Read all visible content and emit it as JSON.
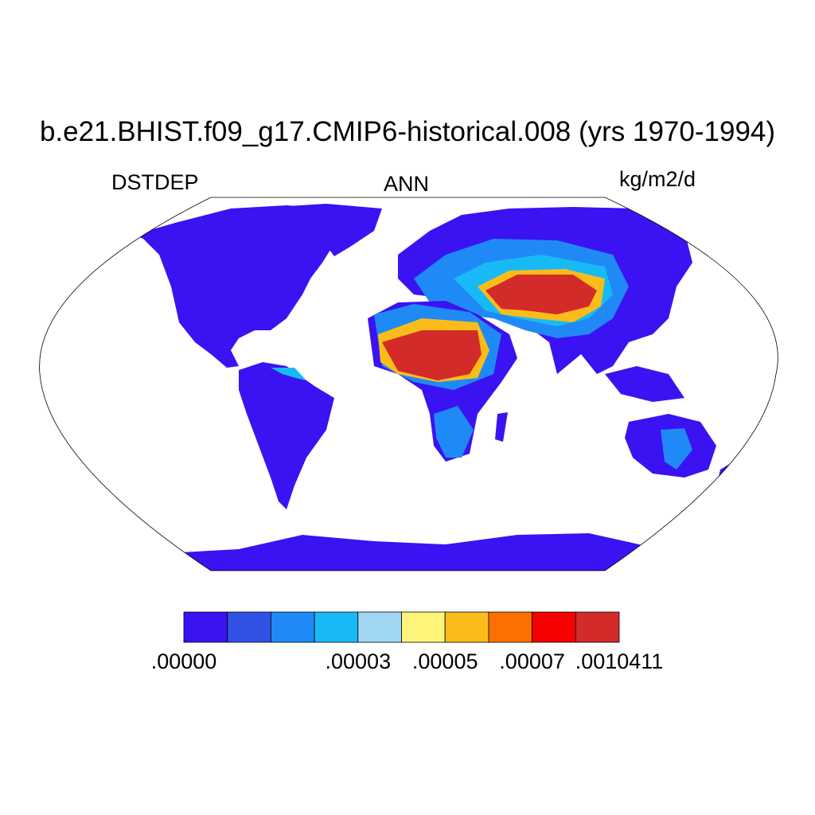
{
  "title": "b.e21.BHIST.f09_g17.CMIP6-historical.008 (yrs 1970-1994)",
  "left_label": "DSTDEP",
  "center_label": "ANN",
  "right_label": "kg/m2/d",
  "projection": "Robinson",
  "coastlines": true,
  "legend": {
    "placement": "bottom",
    "colors": [
      "#3b12f2",
      "#3151e5",
      "#1f8af5",
      "#18baf6",
      "#a0d6f2",
      "#fff47a",
      "#fbbc1a",
      "#fb7000",
      "#f60000",
      "#d32a2a"
    ],
    "tick_labels": [
      ".00000",
      ".00003",
      ".00005",
      ".00007",
      ".0010411"
    ],
    "tick_boundaries": [
      0,
      4,
      6,
      8,
      10
    ]
  }
}
